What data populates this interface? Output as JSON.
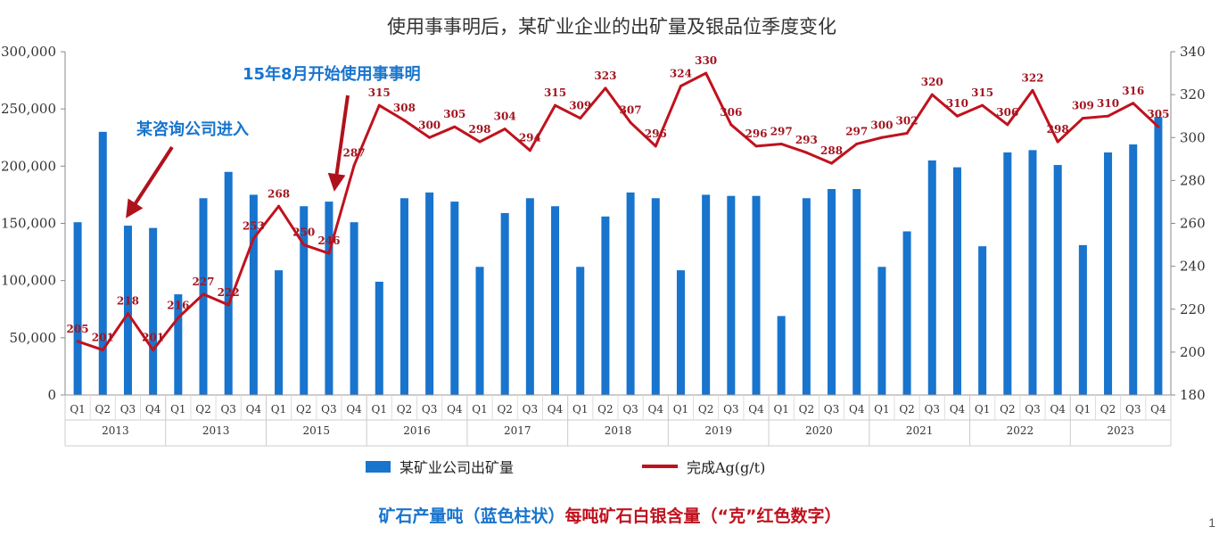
{
  "page_number": "1",
  "chart_data": {
    "type": "bar",
    "title": "使用事事明后，某矿业企业的出矿量及银品位季度变化",
    "quarters": [
      "Q1",
      "Q2",
      "Q3",
      "Q4",
      "Q1",
      "Q2",
      "Q3",
      "Q4",
      "Q1",
      "Q2",
      "Q3",
      "Q4",
      "Q1",
      "Q2",
      "Q3",
      "Q4",
      "Q1",
      "Q2",
      "Q3",
      "Q4",
      "Q1",
      "Q2",
      "Q3",
      "Q4",
      "Q1",
      "Q2",
      "Q3",
      "Q4",
      "Q1",
      "Q2",
      "Q3",
      "Q4",
      "Q1",
      "Q2",
      "Q3",
      "Q4",
      "Q1",
      "Q2",
      "Q3",
      "Q4",
      "Q1",
      "Q2",
      "Q3",
      "Q4"
    ],
    "years": [
      "2013",
      "2013",
      "2015",
      "2016",
      "2017",
      "2018",
      "2019",
      "2020",
      "2021",
      "2022",
      "2023"
    ],
    "series": [
      {
        "name": "某矿业公司出矿量",
        "type": "bar",
        "axis": "left",
        "color": "#1874cd",
        "values": [
          151000,
          230000,
          148000,
          146000,
          88000,
          172000,
          195000,
          175000,
          109000,
          165000,
          169000,
          151000,
          99000,
          172000,
          177000,
          169000,
          112000,
          159000,
          172000,
          165000,
          112000,
          156000,
          177000,
          172000,
          109000,
          175000,
          174000,
          174000,
          69000,
          172000,
          180000,
          180000,
          112000,
          143000,
          205000,
          199000,
          130000,
          212000,
          214000,
          201000,
          131000,
          212000,
          219000,
          243000
        ]
      },
      {
        "name": "完成Ag(g/t)",
        "type": "line",
        "axis": "right",
        "color": "#c0121e",
        "values": [
          205,
          201,
          218,
          201,
          216,
          227,
          222,
          253,
          268,
          250,
          246,
          287,
          315,
          308,
          300,
          305,
          298,
          304,
          294,
          315,
          309,
          323,
          307,
          296,
          324,
          330,
          306,
          296,
          297,
          293,
          288,
          297,
          300,
          302,
          320,
          310,
          315,
          306,
          322,
          298,
          309,
          310,
          316,
          305
        ],
        "labels": [
          "205",
          "201",
          "218",
          "201",
          "216",
          "227",
          "222",
          "253",
          "268",
          "250",
          "246",
          "287",
          "315",
          "308",
          "300",
          "305",
          "298",
          "304",
          "294",
          "315",
          "309",
          "323",
          "307",
          "296",
          "324",
          "330",
          "306",
          "296",
          "297",
          "293",
          "288",
          "297",
          "300",
          "302",
          "320",
          "310",
          "315",
          "306",
          "322",
          "298",
          "309",
          "310",
          "316",
          "305"
        ]
      }
    ],
    "y_left": {
      "min": 0,
      "max": 300000,
      "ticks": [
        "0",
        "50,000",
        "100,000",
        "150,000",
        "200,000",
        "250,000",
        "300,000"
      ]
    },
    "y_right": {
      "min": 180,
      "max": 340,
      "ticks": [
        "180",
        "200",
        "220",
        "240",
        "260",
        "280",
        "300",
        "320",
        "340"
      ]
    },
    "grid": false,
    "legend_position": "bottom",
    "annotations": [
      {
        "text": "某咨询公司进入",
        "color": "#1874cd",
        "points_to_index": 2
      },
      {
        "text": "15年8月开始使用事事明",
        "color": "#1874cd",
        "points_to_index": 10
      }
    ],
    "footer": {
      "part1": "矿石产量吨（蓝色柱状）",
      "part2": "每吨矿石白银含量（“克”红色数字）"
    }
  }
}
